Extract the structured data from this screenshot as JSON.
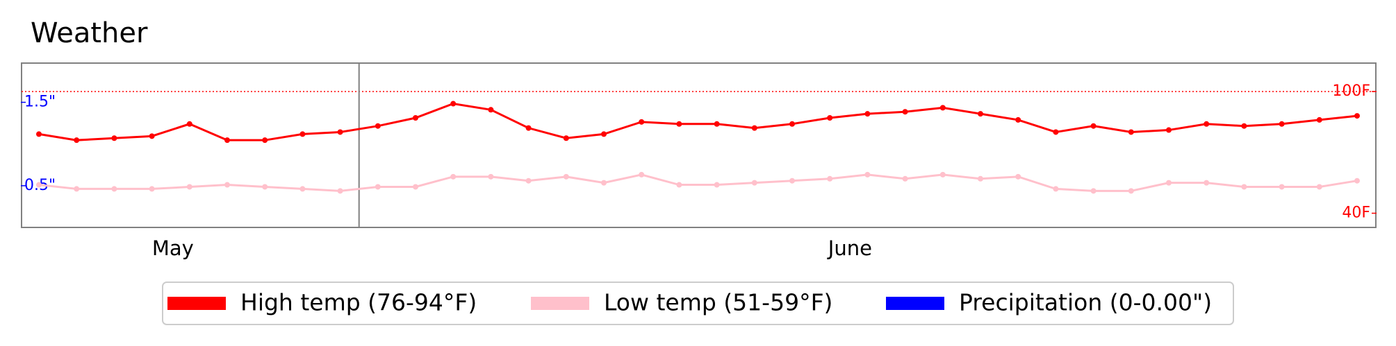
{
  "chart_data": {
    "type": "line",
    "title": "Weather",
    "months": [
      {
        "name": "May",
        "days": 9
      },
      {
        "name": "June",
        "days": 27
      }
    ],
    "series": [
      {
        "name": "High temp (76-94°F)",
        "color": "#ff0000",
        "axis": "y2",
        "values": [
          79,
          76,
          77,
          78,
          84,
          76,
          76,
          79,
          80,
          83,
          87,
          94,
          91,
          82,
          77,
          79,
          85,
          84,
          84,
          82,
          84,
          87,
          89,
          90,
          92,
          89,
          86,
          80,
          83,
          80,
          81,
          84,
          83,
          84,
          86,
          88
        ]
      },
      {
        "name": "Low temp (51-59°F)",
        "color": "#ffc0cb",
        "axis": "y2",
        "values": [
          54,
          52,
          52,
          52,
          53,
          54,
          53,
          52,
          51,
          53,
          53,
          58,
          58,
          56,
          58,
          55,
          59,
          54,
          54,
          55,
          56,
          57,
          59,
          57,
          59,
          57,
          58,
          52,
          51,
          51,
          55,
          55,
          53,
          53,
          53,
          56
        ]
      },
      {
        "name": "Precipitation (0-0.00\")",
        "color": "#0000ff",
        "axis": "y",
        "values": [
          0,
          0,
          0,
          0,
          0,
          0,
          0,
          0,
          0,
          0,
          0,
          0,
          0,
          0,
          0,
          0,
          0,
          0,
          0,
          0,
          0,
          0,
          0,
          0,
          0,
          0,
          0,
          0,
          0,
          0,
          0,
          0,
          0,
          0,
          0,
          0
        ]
      }
    ],
    "ylim": [
      0,
      1.97
    ],
    "yticks": [
      {
        "value": 0.5,
        "label": "0.5\""
      },
      {
        "value": 1.5,
        "label": "1.5\""
      }
    ],
    "y2lim": [
      33,
      114
    ],
    "y2ticks": [
      {
        "value": 40,
        "label": "40F"
      },
      {
        "value": 100,
        "label": "100F"
      }
    ],
    "reference_line": {
      "axis": "y2",
      "value": 100,
      "color": "#ff0000",
      "style": "dotted"
    },
    "legend": "bottom"
  }
}
